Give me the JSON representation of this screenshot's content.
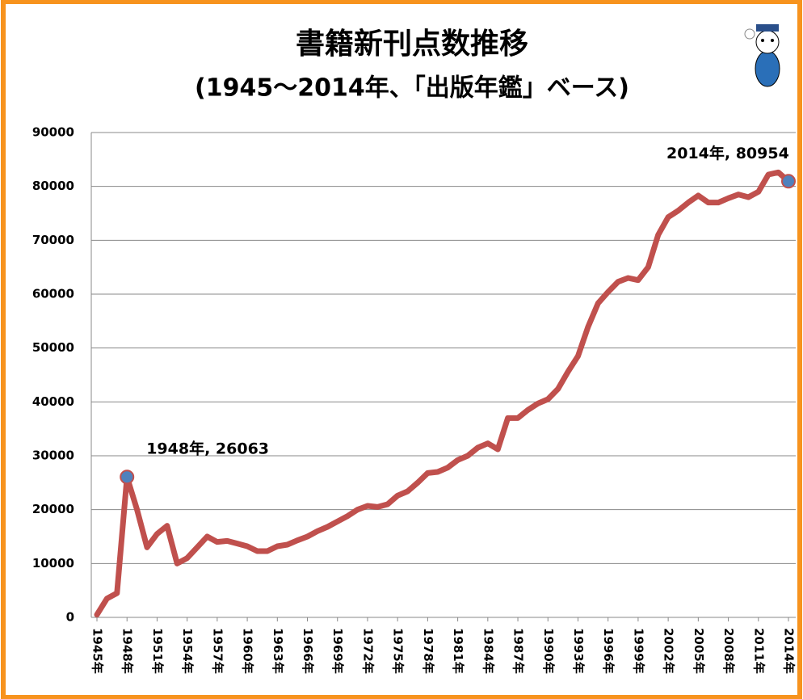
{
  "chart_data": {
    "type": "line",
    "title": "書籍新刊点数推移",
    "subtitle": "(1945〜2014年、「出版年鑑」ベース)",
    "categories": [
      "1945年",
      null,
      null,
      "1948年",
      null,
      null,
      "1951年",
      null,
      null,
      "1954年",
      null,
      null,
      "1957年",
      null,
      null,
      "1960年",
      null,
      null,
      "1963年",
      null,
      null,
      "1966年",
      null,
      null,
      "1969年",
      null,
      null,
      "1972年",
      null,
      null,
      "1975年",
      null,
      null,
      "1978年",
      null,
      null,
      "1981年",
      null,
      null,
      "1984年",
      null,
      null,
      "1987年",
      null,
      null,
      "1990年",
      null,
      null,
      "1993年",
      null,
      null,
      "1996年",
      null,
      null,
      "1999年",
      null,
      null,
      "2002年",
      null,
      null,
      "2005年",
      null,
      null,
      "2008年",
      null,
      null,
      "2011年",
      null,
      null,
      "2014年"
    ],
    "values": [
      500,
      3500,
      4500,
      26063,
      20000,
      13000,
      15500,
      17000,
      10000,
      11000,
      13000,
      15000,
      14000,
      14200,
      13700,
      13200,
      12300,
      12300,
      13200,
      13500,
      14300,
      15000,
      16000,
      16800,
      17800,
      18800,
      20000,
      20700,
      20500,
      21000,
      22600,
      23400,
      25000,
      26800,
      27000,
      27800,
      29200,
      30000,
      31500,
      32300,
      31200,
      37000,
      37000,
      38500,
      39700,
      40500,
      42400,
      45600,
      48500,
      53900,
      58300,
      60400,
      62300,
      63000,
      62600,
      65000,
      71000,
      74300,
      75500,
      77000,
      78300,
      77000,
      77000,
      77800,
      78500,
      78000,
      79000,
      82200,
      82600,
      80954
    ],
    "value_labels": [
      null,
      null,
      null,
      "1948年, 26063",
      null,
      null,
      null,
      null,
      null,
      null,
      null,
      null,
      null,
      null,
      null,
      null,
      null,
      null,
      null,
      null,
      null,
      null,
      null,
      null,
      null,
      null,
      null,
      null,
      null,
      null,
      null,
      null,
      null,
      null,
      null,
      null,
      null,
      null,
      null,
      null,
      null,
      null,
      null,
      null,
      null,
      null,
      null,
      null,
      null,
      null,
      null,
      null,
      null,
      null,
      null,
      null,
      null,
      null,
      null,
      null,
      null,
      null,
      null,
      null,
      null,
      null,
      null,
      null,
      null,
      "2014年, 80954"
    ],
    "color": "#c0504d",
    "marker_color": "#4f81bd",
    "ylim": [
      0,
      90000
    ],
    "yticks": [
      0,
      10000,
      20000,
      30000,
      40000,
      50000,
      60000,
      70000,
      80000,
      90000
    ],
    "grid": true
  }
}
